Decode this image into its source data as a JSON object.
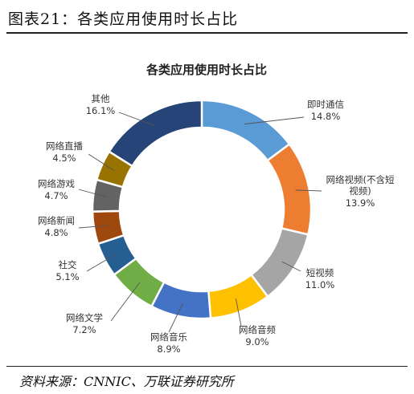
{
  "figure": {
    "label": "图表21：各类应用使用时长占比",
    "source": "资料来源：CNNIC、万联证券研究所"
  },
  "chart_data": {
    "type": "pie",
    "title": "各类应用使用时长占比",
    "donut": true,
    "legend": "none",
    "series": [
      {
        "name": "即时通信",
        "value": 14.8,
        "label_lines": [
          "即时通信"
        ],
        "pct": "14.8%",
        "color": "#5B9BD5"
      },
      {
        "name": "网络视频(不含短视频)",
        "value": 13.9,
        "label_lines": [
          "网络视频(不含短",
          "视频)"
        ],
        "pct": "13.9%",
        "color": "#ED7D31"
      },
      {
        "name": "短视频",
        "value": 11.0,
        "label_lines": [
          "短视频"
        ],
        "pct": "11.0%",
        "color": "#A5A5A5"
      },
      {
        "name": "网络音频",
        "value": 9.0,
        "label_lines": [
          "网络音频"
        ],
        "pct": "9.0%",
        "color": "#FFC000"
      },
      {
        "name": "网络音乐",
        "value": 8.9,
        "label_lines": [
          "网络音乐"
        ],
        "pct": "8.9%",
        "color": "#4472C4"
      },
      {
        "name": "网络文学",
        "value": 7.2,
        "label_lines": [
          "网络文学"
        ],
        "pct": "7.2%",
        "color": "#70AD47"
      },
      {
        "name": "社交",
        "value": 5.1,
        "label_lines": [
          "社交"
        ],
        "pct": "5.1%",
        "color": "#255E91"
      },
      {
        "name": "网络新闻",
        "value": 4.8,
        "label_lines": [
          "网络新闻"
        ],
        "pct": "4.8%",
        "color": "#9E480E"
      },
      {
        "name": "网络游戏",
        "value": 4.7,
        "label_lines": [
          "网络游戏"
        ],
        "pct": "4.7%",
        "color": "#636363"
      },
      {
        "name": "网络直播",
        "value": 4.5,
        "label_lines": [
          "网络直播"
        ],
        "pct": "4.5%",
        "color": "#997300"
      },
      {
        "name": "其他",
        "value": 16.1,
        "label_lines": [
          "其他"
        ],
        "pct": "16.1%",
        "color": "#264478"
      }
    ]
  }
}
